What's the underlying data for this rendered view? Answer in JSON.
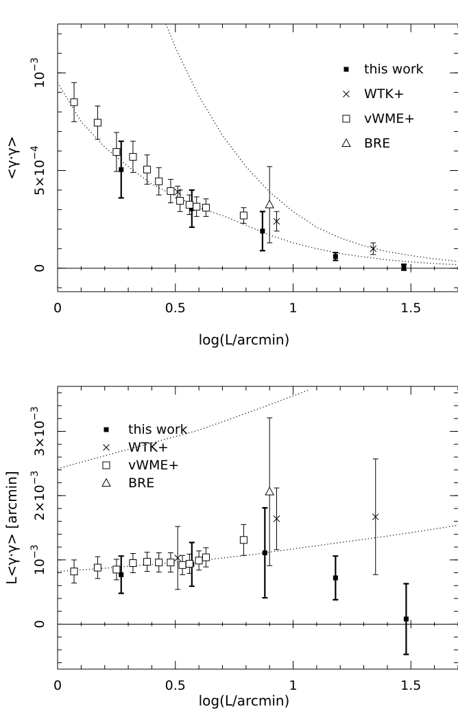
{
  "chart_data": [
    {
      "type": "scatter",
      "title": "",
      "xlabel": "log(L/arcmin)",
      "ylabel": "<γ·γ>",
      "xlim": [
        0,
        1.7
      ],
      "ylim": [
        -0.00012,
        0.00125
      ],
      "x_ticks": [
        {
          "value": 0,
          "label": "0"
        },
        {
          "value": 0.5,
          "label": "0.5"
        },
        {
          "value": 1,
          "label": "1"
        },
        {
          "value": 1.5,
          "label": "1.5"
        }
      ],
      "y_ticks": [
        {
          "value": 0,
          "label": "0",
          "sup": ""
        },
        {
          "value": 0.0005,
          "label": "5×10",
          "sup": "−4"
        },
        {
          "value": 0.001,
          "label": "10",
          "sup": "−3"
        }
      ],
      "zero_line": true,
      "legend_position": "top-right",
      "models": [
        {
          "style": "dotted",
          "points": [
            [
              0,
              0.00095
            ],
            [
              0.1,
              0.00075
            ],
            [
              0.2,
              0.00062
            ],
            [
              0.3,
              0.00052
            ],
            [
              0.4,
              0.00043
            ],
            [
              0.5,
              0.00037
            ],
            [
              0.6,
              0.00031
            ],
            [
              0.7,
              0.00027
            ],
            [
              0.8,
              0.00022
            ],
            [
              0.9,
              0.00017
            ],
            [
              1.0,
              0.00013
            ],
            [
              1.1,
              0.0001
            ],
            [
              1.2,
              7.5e-05
            ],
            [
              1.3,
              5.8e-05
            ],
            [
              1.4,
              4.3e-05
            ],
            [
              1.5,
              3.2e-05
            ],
            [
              1.6,
              2.4e-05
            ],
            [
              1.7,
              1.8e-05
            ]
          ]
        },
        {
          "style": "dotted",
          "points": [
            [
              0.46,
              0.00125
            ],
            [
              0.5,
              0.00113
            ],
            [
              0.6,
              0.00088
            ],
            [
              0.7,
              0.00068
            ],
            [
              0.8,
              0.00052
            ],
            [
              0.9,
              0.00039
            ],
            [
              1.0,
              0.00029
            ],
            [
              1.1,
              0.00021
            ],
            [
              1.2,
              0.000155
            ],
            [
              1.3,
              0.000115
            ],
            [
              1.4,
              8.5e-05
            ],
            [
              1.5,
              6.5e-05
            ],
            [
              1.6,
              4.8e-05
            ],
            [
              1.7,
              3.5e-05
            ]
          ]
        }
      ],
      "series": [
        {
          "name": "this work",
          "marker": "filled-square",
          "points": [
            {
              "x": 0.27,
              "y": 0.000505,
              "yerr": 0.000145
            },
            {
              "x": 0.57,
              "y": 0.000305,
              "yerr": 9.5e-05
            },
            {
              "x": 0.87,
              "y": 0.00019,
              "yerr": 0.0001
            },
            {
              "x": 1.18,
              "y": 6e-05,
              "yerr": 2e-05
            },
            {
              "x": 1.47,
              "y": 5e-06,
              "yerr": 1.5e-05
            }
          ]
        },
        {
          "name": "WTK+",
          "marker": "cross",
          "points": [
            {
              "x": 0.51,
              "y": 0.00039,
              "yerr": 3e-05
            },
            {
              "x": 0.93,
              "y": 0.00024,
              "yerr": 5e-05
            },
            {
              "x": 1.34,
              "y": 0.0001,
              "yerr": 3e-05
            }
          ]
        },
        {
          "name": "vWME+",
          "marker": "open-square",
          "points": [
            {
              "x": 0.07,
              "y": 0.00085,
              "yerr": 0.0001
            },
            {
              "x": 0.17,
              "y": 0.000745,
              "yerr": 8.5e-05
            },
            {
              "x": 0.25,
              "y": 0.000595,
              "yerr": 0.0001
            },
            {
              "x": 0.32,
              "y": 0.00057,
              "yerr": 8e-05
            },
            {
              "x": 0.38,
              "y": 0.000505,
              "yerr": 7.5e-05
            },
            {
              "x": 0.43,
              "y": 0.000445,
              "yerr": 7e-05
            },
            {
              "x": 0.48,
              "y": 0.000395,
              "yerr": 6e-05
            },
            {
              "x": 0.52,
              "y": 0.000345,
              "yerr": 5.5e-05
            },
            {
              "x": 0.56,
              "y": 0.000325,
              "yerr": 5e-05
            },
            {
              "x": 0.59,
              "y": 0.000315,
              "yerr": 5e-05
            },
            {
              "x": 0.63,
              "y": 0.00031,
              "yerr": 4.5e-05
            },
            {
              "x": 0.79,
              "y": 0.00027,
              "yerr": 4e-05
            }
          ]
        },
        {
          "name": "BRE",
          "marker": "open-triangle",
          "points": [
            {
              "x": 0.9,
              "y": 0.000325,
              "yerr": 0.000195
            }
          ]
        }
      ]
    },
    {
      "type": "scatter",
      "title": "",
      "xlabel": "log(L/arcmin)",
      "ylabel": "L<γ·γ>  [arcmin]",
      "xlim": [
        0,
        1.7
      ],
      "ylim": [
        -0.0007,
        0.0037
      ],
      "x_ticks": [
        {
          "value": 0,
          "label": "0"
        },
        {
          "value": 0.5,
          "label": "0.5"
        },
        {
          "value": 1,
          "label": "1"
        },
        {
          "value": 1.5,
          "label": "1.5"
        }
      ],
      "y_ticks": [
        {
          "value": 0,
          "label": "0",
          "sup": ""
        },
        {
          "value": 0.001,
          "label": "10",
          "sup": "−3"
        },
        {
          "value": 0.002,
          "label": "2×10",
          "sup": "−3"
        },
        {
          "value": 0.003,
          "label": "3×10",
          "sup": "−3"
        }
      ],
      "zero_line": true,
      "legend_position": "top-left",
      "models": [
        {
          "style": "dotted",
          "points": [
            [
              0,
              0.00242
            ],
            [
              0.2,
              0.00262
            ],
            [
              0.4,
              0.00282
            ],
            [
              0.6,
              0.00302
            ],
            [
              0.8,
              0.00328
            ],
            [
              1.0,
              0.00355
            ],
            [
              1.07,
              0.00365
            ]
          ]
        },
        {
          "style": "dotted",
          "points": [
            [
              0,
              0.00082
            ],
            [
              0.2,
              0.00087
            ],
            [
              0.4,
              0.00093
            ],
            [
              0.6,
              0.00099
            ],
            [
              0.8,
              0.00107
            ],
            [
              1.0,
              0.00117
            ],
            [
              1.2,
              0.00127
            ],
            [
              1.4,
              0.00137
            ],
            [
              1.6,
              0.00148
            ],
            [
              1.7,
              0.00154
            ]
          ]
        }
      ],
      "series": [
        {
          "name": "this work",
          "marker": "filled-square",
          "points": [
            {
              "x": 0.27,
              "y": 0.00077,
              "yerr": 0.00029
            },
            {
              "x": 0.57,
              "y": 0.00093,
              "yerr": 0.00034
            },
            {
              "x": 0.88,
              "y": 0.00111,
              "yerr": 0.0007
            },
            {
              "x": 1.18,
              "y": 0.00072,
              "yerr": 0.00034
            },
            {
              "x": 1.48,
              "y": 8e-05,
              "yerr": 0.00055
            }
          ]
        },
        {
          "name": "WTK+",
          "marker": "cross",
          "points": [
            {
              "x": 0.51,
              "y": 0.00103,
              "yerr": 0.00049
            },
            {
              "x": 0.93,
              "y": 0.00164,
              "yerr": 0.00048
            },
            {
              "x": 1.35,
              "y": 0.00167,
              "yerr": 0.0009
            }
          ]
        },
        {
          "name": "vWME+",
          "marker": "open-square",
          "points": [
            {
              "x": 0.07,
              "y": 0.00082,
              "yerr": 0.00018
            },
            {
              "x": 0.17,
              "y": 0.00088,
              "yerr": 0.00017
            },
            {
              "x": 0.25,
              "y": 0.00085,
              "yerr": 0.00016
            },
            {
              "x": 0.32,
              "y": 0.00095,
              "yerr": 0.00015
            },
            {
              "x": 0.38,
              "y": 0.00097,
              "yerr": 0.00015
            },
            {
              "x": 0.43,
              "y": 0.00096,
              "yerr": 0.00015
            },
            {
              "x": 0.48,
              "y": 0.00096,
              "yerr": 0.00015
            },
            {
              "x": 0.53,
              "y": 0.00092,
              "yerr": 0.00015
            },
            {
              "x": 0.56,
              "y": 0.00094,
              "yerr": 0.00015
            },
            {
              "x": 0.6,
              "y": 0.00099,
              "yerr": 0.00015
            },
            {
              "x": 0.63,
              "y": 0.00104,
              "yerr": 0.00015
            },
            {
              "x": 0.79,
              "y": 0.00131,
              "yerr": 0.00024
            }
          ]
        },
        {
          "name": "BRE",
          "marker": "open-triangle",
          "points": [
            {
              "x": 0.9,
              "y": 0.00206,
              "yerr": 0.00115
            }
          ]
        }
      ]
    }
  ]
}
